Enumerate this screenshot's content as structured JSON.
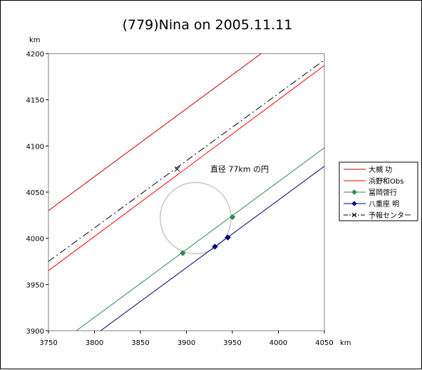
{
  "chart_data": {
    "type": "line",
    "title": "(779)Nina on 2005.11.11",
    "xunit": "km",
    "yunit": "km",
    "xlim": [
      3750,
      4050
    ],
    "ylim": [
      3900,
      4200
    ],
    "xticks": [
      3750,
      3800,
      3850,
      3900,
      3950,
      4000,
      4050
    ],
    "yticks": [
      3900,
      3950,
      4000,
      4050,
      4100,
      4150,
      4200
    ],
    "grid": false,
    "legend_position": "right",
    "series": [
      {
        "name": "大槻 功",
        "color": "#c00000",
        "marker": "none",
        "dash": "solid",
        "points": [
          [
            3750,
            4030
          ],
          [
            3984,
            4202
          ]
        ]
      },
      {
        "name": "浜野和Obs",
        "color": "#ff0000",
        "marker": "none",
        "dash": "solid",
        "points": [
          [
            3750,
            3965
          ],
          [
            4050,
            4187
          ]
        ]
      },
      {
        "name": "冨岡啓行",
        "color": "#2e8b57",
        "marker": "diamond",
        "dash": "solid",
        "points": [
          [
            3779,
            3899
          ],
          [
            4050,
            4098
          ]
        ],
        "markers": [
          [
            3896,
            3984
          ],
          [
            3950,
            4023
          ]
        ]
      },
      {
        "name": "八重座 明",
        "color": "#000080",
        "marker": "diamond",
        "dash": "solid",
        "points": [
          [
            3804,
            3898
          ],
          [
            4050,
            4078
          ]
        ],
        "markers": [
          [
            3931,
            3991
          ],
          [
            3945,
            4001
          ]
        ]
      },
      {
        "name": "予報センター",
        "color": "#000000",
        "marker": "x",
        "dash": "dashdot",
        "points": [
          [
            3750,
            3975
          ],
          [
            4050,
            4193
          ]
        ],
        "markers": [
          [
            3890,
            4075
          ]
        ]
      }
    ],
    "circle": {
      "cx": 3910,
      "cy": 4022,
      "r": 38.5,
      "color": "#c8c8c8"
    },
    "annotation": {
      "text": "直径 77km の円",
      "x": 3926,
      "y": 4072
    }
  }
}
